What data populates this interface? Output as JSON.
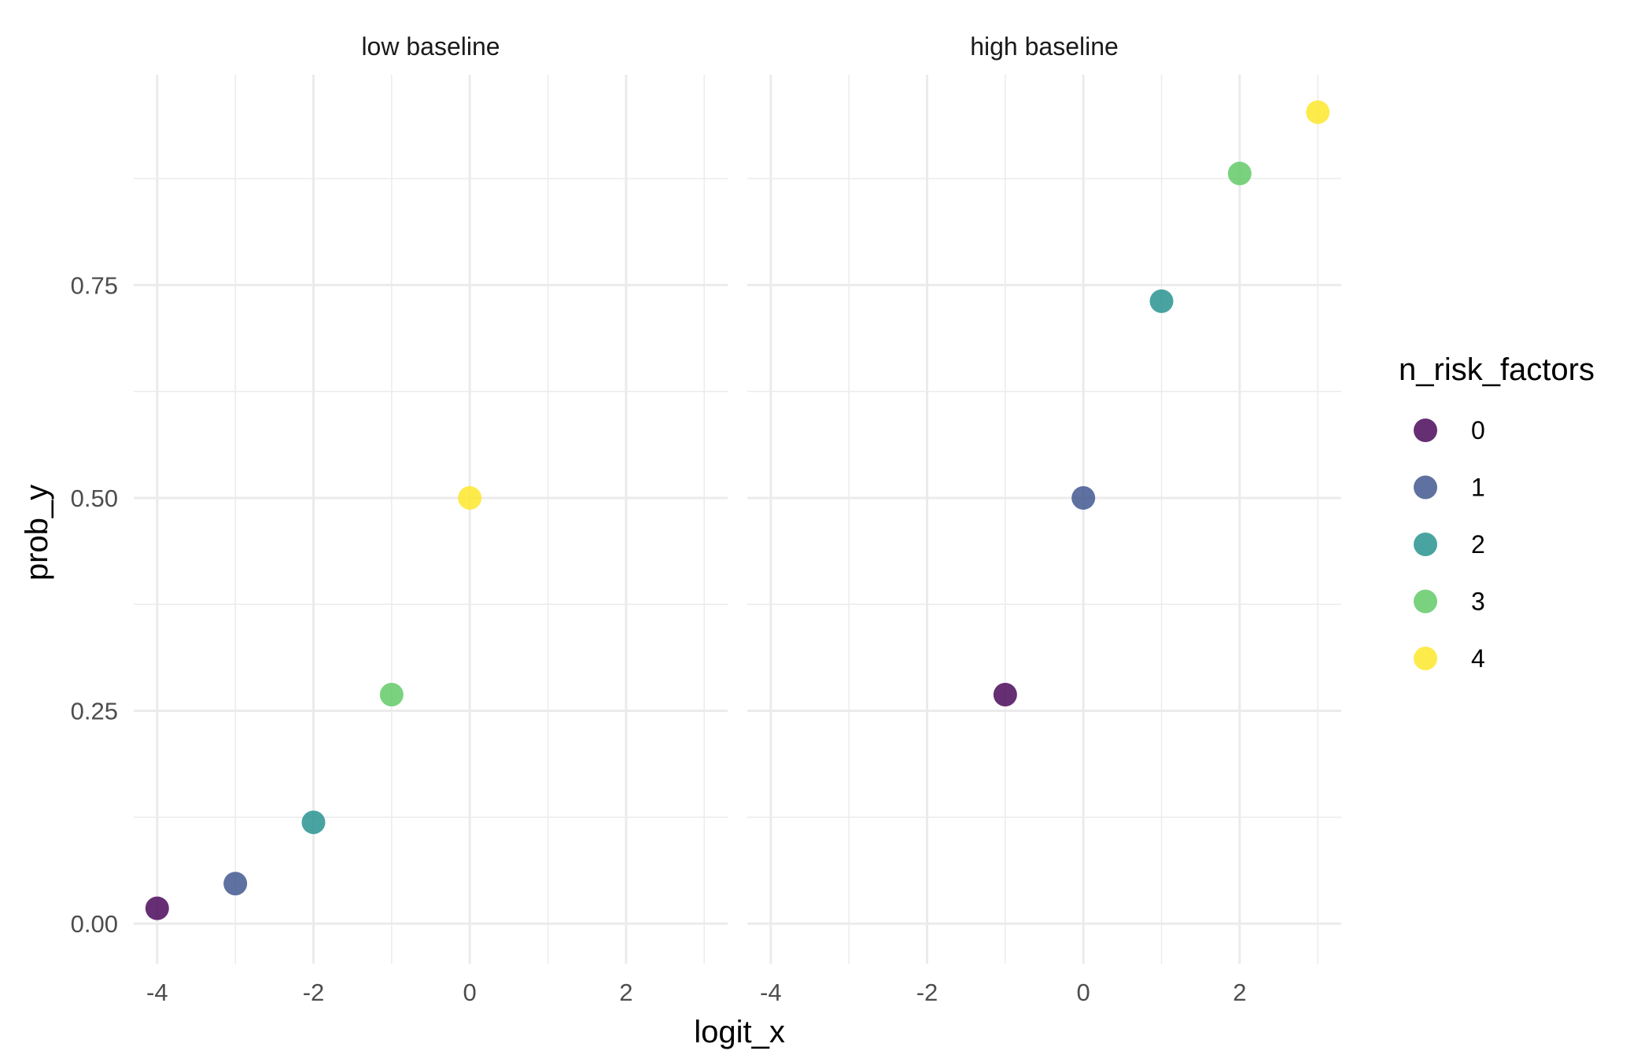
{
  "chart_data": {
    "type": "scatter",
    "xlabel": "logit_x",
    "ylabel": "prob_y",
    "xlim": [
      -4.3,
      3.3
    ],
    "ylim": [
      -0.047,
      0.997
    ],
    "x_ticks": [
      -4,
      -2,
      0,
      2
    ],
    "x_tick_labels": [
      "-4",
      "-2",
      "0",
      "2"
    ],
    "x_minor_ticks": [
      -3,
      -1,
      1,
      3
    ],
    "y_ticks": [
      0,
      0.25,
      0.5,
      0.75
    ],
    "y_tick_labels": [
      "0.00",
      "0.25",
      "0.50",
      "0.75"
    ],
    "y_minor_ticks": [
      0.125,
      0.375,
      0.625,
      0.875
    ],
    "grid": true,
    "legend_position": "right",
    "legend": {
      "title": "n_risk_factors",
      "entries": [
        {
          "label": "0",
          "color": "#440154"
        },
        {
          "label": "1",
          "color": "#3b528b"
        },
        {
          "label": "2",
          "color": "#21908c"
        },
        {
          "label": "3",
          "color": "#5dc863"
        },
        {
          "label": "4",
          "color": "#fde725"
        }
      ]
    },
    "panels": [
      {
        "title": "low baseline",
        "points": [
          {
            "x": -4,
            "y": 0.018,
            "group": "0"
          },
          {
            "x": -3,
            "y": 0.047,
            "group": "1"
          },
          {
            "x": -2,
            "y": 0.119,
            "group": "2"
          },
          {
            "x": -1,
            "y": 0.269,
            "group": "3"
          },
          {
            "x": 0,
            "y": 0.5,
            "group": "4"
          }
        ]
      },
      {
        "title": "high baseline",
        "points": [
          {
            "x": -1,
            "y": 0.269,
            "group": "0"
          },
          {
            "x": 0,
            "y": 0.5,
            "group": "1"
          },
          {
            "x": 1,
            "y": 0.731,
            "group": "2"
          },
          {
            "x": 2,
            "y": 0.881,
            "group": "3"
          },
          {
            "x": 3,
            "y": 0.953,
            "group": "4"
          }
        ]
      }
    ]
  }
}
